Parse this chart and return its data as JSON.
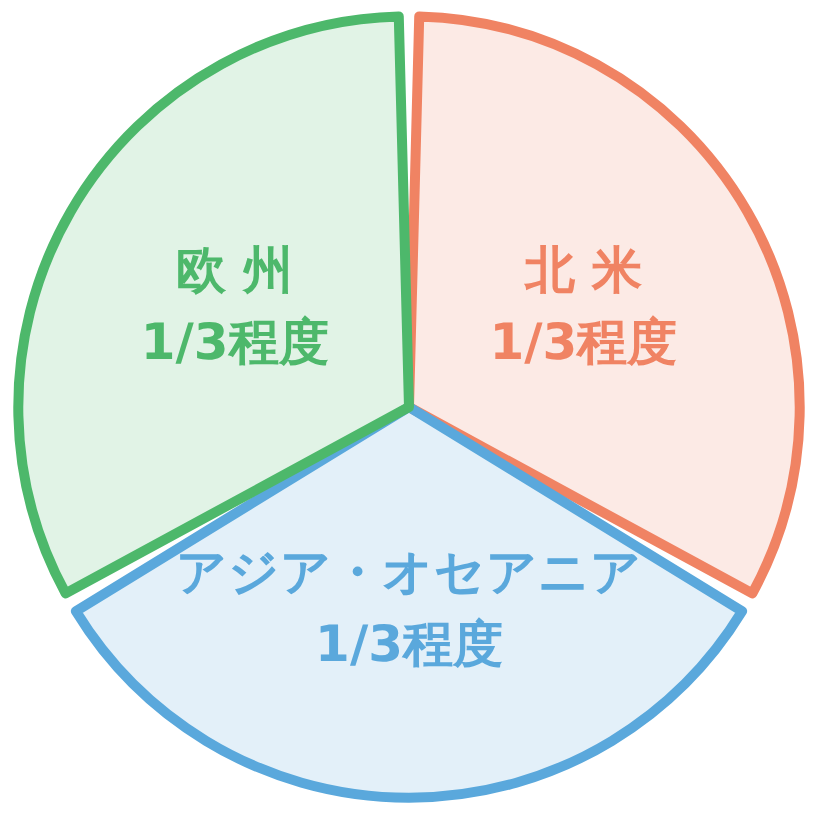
{
  "chart_data": {
    "type": "pie",
    "categories": [
      "北 米",
      "アジア・オセアニア",
      "欧 州"
    ],
    "values": [
      33.33,
      33.33,
      33.33
    ],
    "value_labels": [
      "1/3程度",
      "1/3程度",
      "1/3程度"
    ],
    "colors": [
      "#f08363",
      "#5aa8dc",
      "#4db86b"
    ],
    "legend": false
  }
}
